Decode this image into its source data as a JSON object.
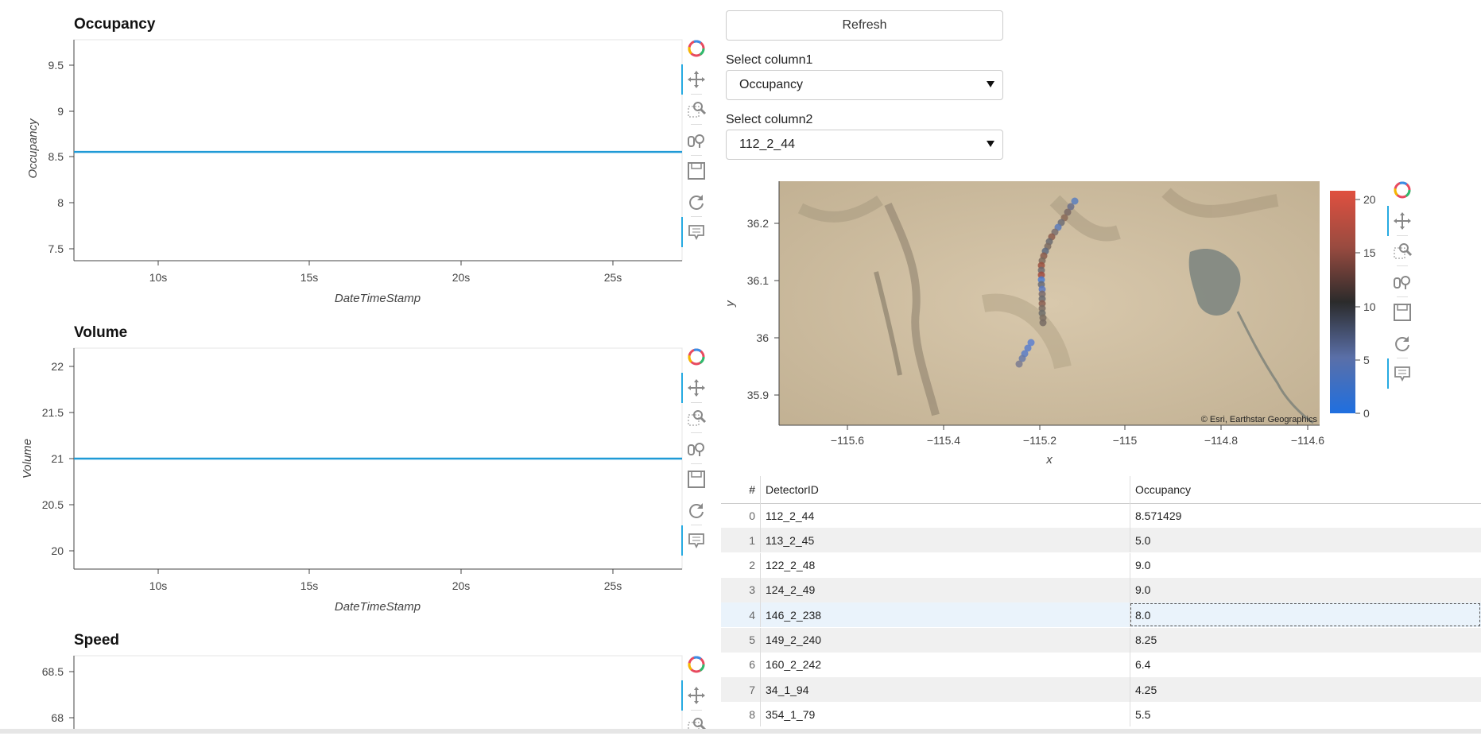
{
  "plots": [
    {
      "title": "Occupancy",
      "ylabel": "Occupancy",
      "xlabel": "DateTimeStamp",
      "yticks": [
        "9.5",
        "9",
        "8.5",
        "8",
        "7.5"
      ],
      "xticks": [
        "10s",
        "15s",
        "20s",
        "25s"
      ],
      "line_value": 8.571429,
      "ylim": [
        7.38,
        9.8
      ]
    },
    {
      "title": "Volume",
      "ylabel": "Volume",
      "xlabel": "DateTimeStamp",
      "yticks": [
        "22",
        "21.5",
        "21",
        "20.5",
        "20"
      ],
      "xticks": [
        "10s",
        "15s",
        "20s",
        "25s"
      ],
      "line_value": 21,
      "ylim": [
        19.8,
        22.2
      ]
    },
    {
      "title": "Speed",
      "ylabel": "",
      "xlabel": "",
      "yticks": [
        "68.5",
        "68"
      ],
      "xticks": [],
      "line_value": null,
      "ylim": [
        67.9,
        68.7
      ]
    }
  ],
  "controls": {
    "refresh_label": "Refresh",
    "select1_label": "Select column1",
    "select1_value": "Occupancy",
    "select2_label": "Select column2",
    "select2_value": "112_2_44"
  },
  "map": {
    "xlabel": "x",
    "ylabel": "y",
    "xticks": [
      "−115.6",
      "−115.4",
      "−115.2",
      "−115",
      "−114.8",
      "−114.6"
    ],
    "yticks": [
      "36.2",
      "36.1",
      "36",
      "35.9"
    ],
    "attribution": "© Esri, Earthstar Geographics",
    "colorbar_ticks": [
      "20",
      "15",
      "10",
      "5",
      "0"
    ],
    "colorbar_colors": [
      "#1f6fe0",
      "#5a6fa8",
      "#2b2b2b",
      "#9a4b40",
      "#e05040"
    ]
  },
  "table": {
    "headers": [
      "#",
      "DetectorID",
      "Occupancy"
    ],
    "rows": [
      {
        "idx": "0",
        "detector": "112_2_44",
        "occupancy": "8.571429"
      },
      {
        "idx": "1",
        "detector": "113_2_45",
        "occupancy": "5.0"
      },
      {
        "idx": "2",
        "detector": "122_2_48",
        "occupancy": "9.0"
      },
      {
        "idx": "3",
        "detector": "124_2_49",
        "occupancy": "9.0"
      },
      {
        "idx": "4",
        "detector": "146_2_238",
        "occupancy": "8.0"
      },
      {
        "idx": "5",
        "detector": "149_2_240",
        "occupancy": "8.25"
      },
      {
        "idx": "6",
        "detector": "160_2_242",
        "occupancy": "6.4"
      },
      {
        "idx": "7",
        "detector": "34_1_94",
        "occupancy": "4.25"
      },
      {
        "idx": "8",
        "detector": "354_1_79",
        "occupancy": "5.5"
      }
    ]
  },
  "toolbar_icons": [
    "bokeh-logo-icon",
    "pan-icon",
    "box-zoom-icon",
    "wheel-zoom-icon",
    "save-icon",
    "reset-icon",
    "hover-icon"
  ],
  "colors": {
    "line": "#1f9ad6",
    "accent": "#26aae1",
    "stripe": "#f0f0f0",
    "selected": "#eaf3fb"
  }
}
